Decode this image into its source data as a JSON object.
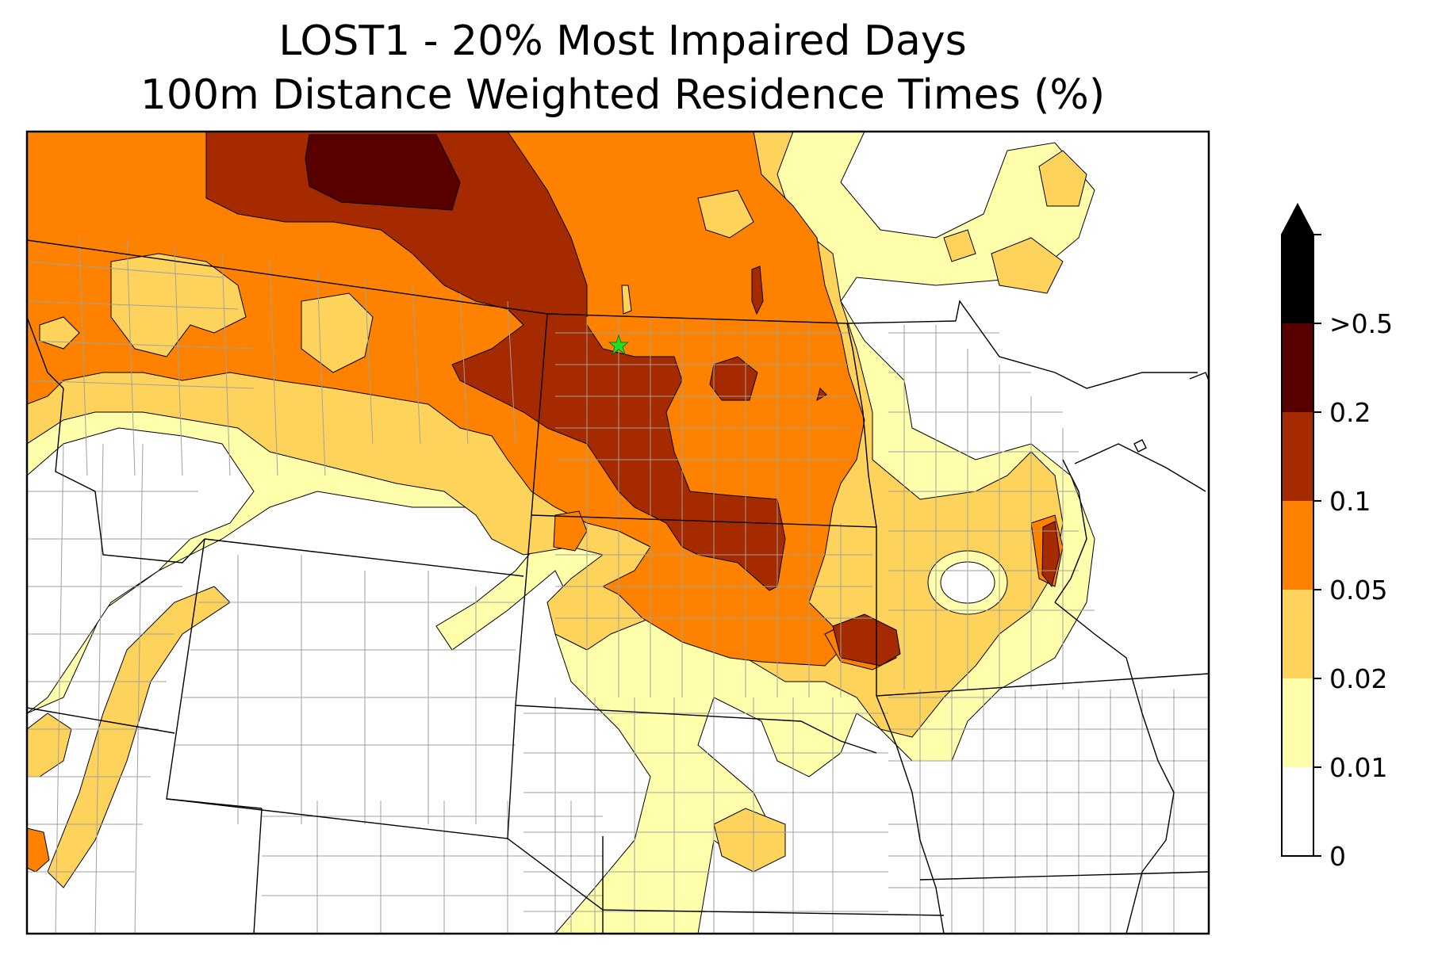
{
  "title": {
    "line1": "LOST1 - 20% Most Impaired Days",
    "line2": "100m Distance Weighted Residence Times (%)"
  },
  "map": {
    "site_marker": "green-star-icon",
    "contour_colors": {
      "0-0.01": "#ffffff",
      "0.01-0.02": "#ffffab",
      "0.02-0.05": "#fed35c",
      "0.05-0.1": "#fe8200",
      "0.1-0.2": "#a52a00",
      "0.2-0.5": "#580000",
      ">0.5": "#000000"
    },
    "state_border_color": "#000000",
    "county_border_color": "#a0a0a0"
  },
  "colorbar": {
    "labels": [
      "0",
      "0.01",
      "0.02",
      "0.05",
      "0.1",
      "0.2",
      ">0.5"
    ],
    "colors": [
      "#ffffff",
      "#ffffab",
      "#fed35c",
      "#fe8200",
      "#a52a00",
      "#580000",
      "#000000"
    ],
    "extend": "max"
  }
}
